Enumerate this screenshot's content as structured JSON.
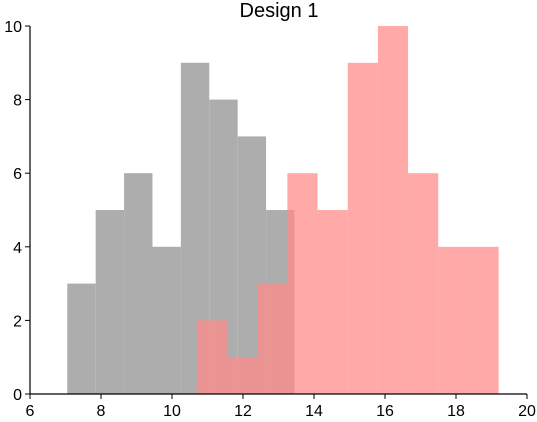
{
  "chart_data": {
    "type": "histogram",
    "title": "Design 1",
    "xlabel": "",
    "ylabel": "",
    "xlim": [
      6,
      20
    ],
    "ylim": [
      0,
      10
    ],
    "xticks": [
      "6",
      "8",
      "10",
      "12",
      "14",
      "16",
      "18",
      "20"
    ],
    "yticks": [
      "0",
      "2",
      "4",
      "6",
      "8",
      "10"
    ],
    "grid": false,
    "legend": "none",
    "series": [
      {
        "color": "#a9a9a9",
        "opacity": 0.95,
        "bins": [
          {
            "x0": 7.05,
            "x1": 7.85,
            "count": 3
          },
          {
            "x0": 7.85,
            "x1": 8.65,
            "count": 5
          },
          {
            "x0": 8.65,
            "x1": 9.45,
            "count": 6
          },
          {
            "x0": 9.45,
            "x1": 10.25,
            "count": 4
          },
          {
            "x0": 10.25,
            "x1": 11.05,
            "count": 9
          },
          {
            "x0": 11.05,
            "x1": 11.85,
            "count": 8
          },
          {
            "x0": 11.85,
            "x1": 12.65,
            "count": 7
          },
          {
            "x0": 12.65,
            "x1": 13.45,
            "count": 5
          }
        ]
      },
      {
        "color": "#ff8c8c",
        "opacity": 0.75,
        "bins": [
          {
            "x0": 10.7,
            "x1": 11.55,
            "count": 2
          },
          {
            "x0": 11.55,
            "x1": 12.4,
            "count": 1
          },
          {
            "x0": 12.4,
            "x1": 13.25,
            "count": 3
          },
          {
            "x0": 13.25,
            "x1": 14.1,
            "count": 6
          },
          {
            "x0": 14.1,
            "x1": 14.95,
            "count": 5
          },
          {
            "x0": 14.95,
            "x1": 15.8,
            "count": 9
          },
          {
            "x0": 15.8,
            "x1": 16.65,
            "count": 10
          },
          {
            "x0": 16.65,
            "x1": 17.5,
            "count": 6
          },
          {
            "x0": 17.5,
            "x1": 18.35,
            "count": 4
          },
          {
            "x0": 18.35,
            "x1": 19.2,
            "count": 4
          }
        ]
      }
    ]
  }
}
